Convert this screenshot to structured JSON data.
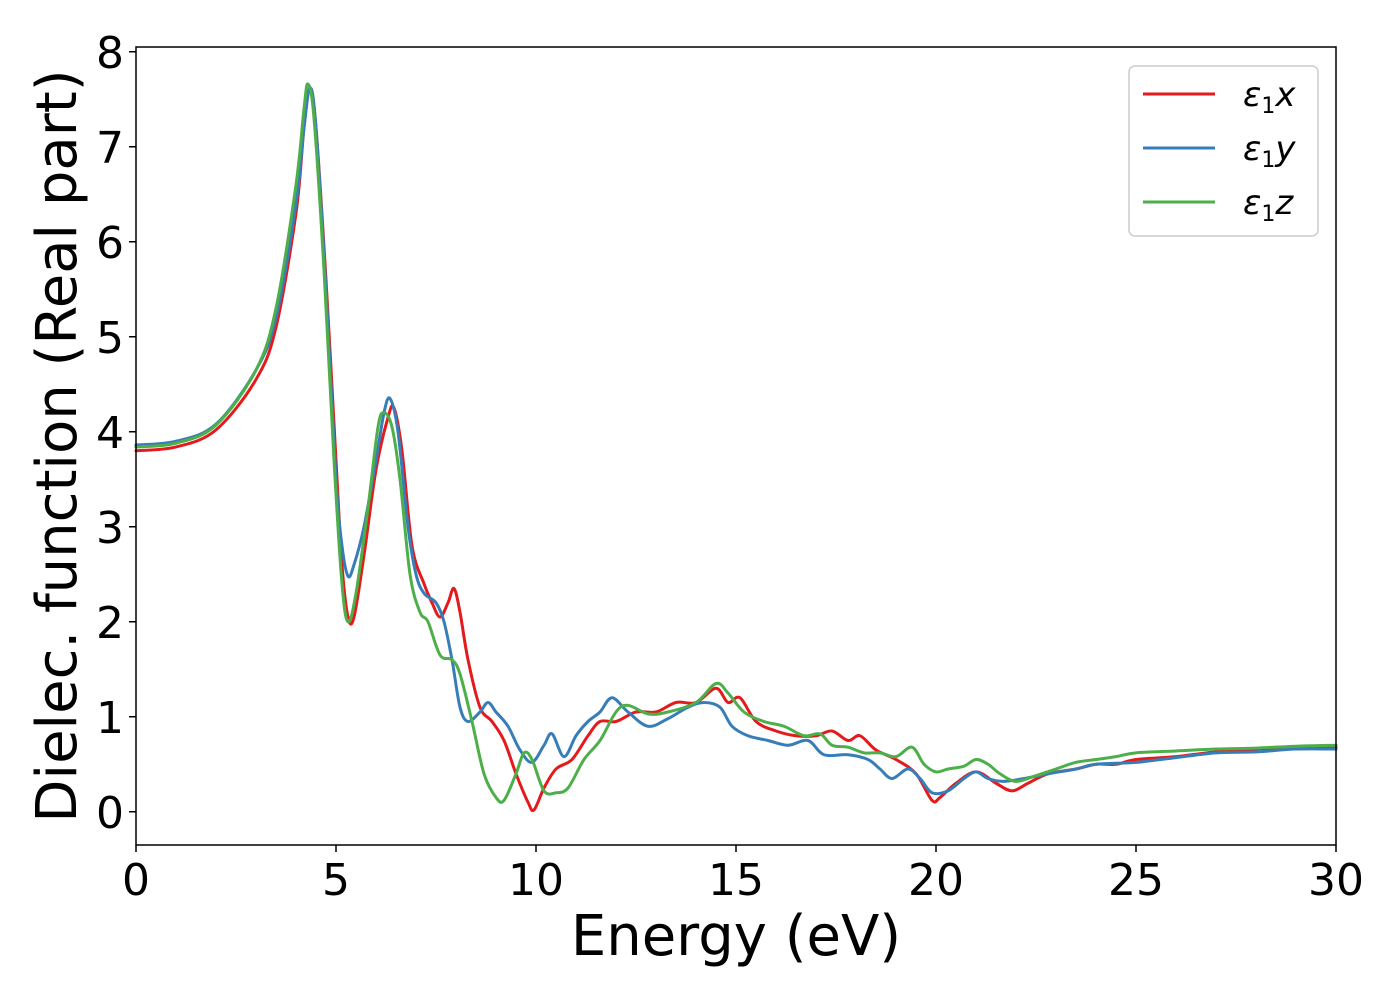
{
  "chart_data": {
    "type": "line",
    "xlabel": "Energy (eV)",
    "ylabel": "Dielec. function (Real part)",
    "xlim": [
      0,
      30
    ],
    "ylim": [
      -0.35,
      8.05
    ],
    "xticks": [
      0,
      5,
      10,
      15,
      20,
      25,
      30
    ],
    "yticks": [
      0,
      1,
      2,
      3,
      4,
      5,
      6,
      7,
      8
    ],
    "grid": false,
    "legend_position": "top-right",
    "series": [
      {
        "name": "ε1x",
        "legend": {
          "symbol": "ε",
          "sub": "1",
          "var": "x"
        },
        "color": "#e41a1c",
        "points": [
          [
            0,
            3.8
          ],
          [
            1,
            3.84
          ],
          [
            2,
            4.02
          ],
          [
            3,
            4.55
          ],
          [
            3.5,
            5.1
          ],
          [
            4,
            6.3
          ],
          [
            4.2,
            7.2
          ],
          [
            4.35,
            7.62
          ],
          [
            4.5,
            7.2
          ],
          [
            4.75,
            5.6
          ],
          [
            5.0,
            3.7
          ],
          [
            5.15,
            2.6
          ],
          [
            5.3,
            2.05
          ],
          [
            5.45,
            2.05
          ],
          [
            5.7,
            2.7
          ],
          [
            6.0,
            3.6
          ],
          [
            6.3,
            4.15
          ],
          [
            6.45,
            4.25
          ],
          [
            6.65,
            3.8
          ],
          [
            6.9,
            2.8
          ],
          [
            7.2,
            2.4
          ],
          [
            7.4,
            2.2
          ],
          [
            7.6,
            2.05
          ],
          [
            7.8,
            2.2
          ],
          [
            7.95,
            2.35
          ],
          [
            8.1,
            2.1
          ],
          [
            8.3,
            1.6
          ],
          [
            8.6,
            1.1
          ],
          [
            8.9,
            0.95
          ],
          [
            9.2,
            0.75
          ],
          [
            9.5,
            0.4
          ],
          [
            9.8,
            0.1
          ],
          [
            9.95,
            0.02
          ],
          [
            10.2,
            0.25
          ],
          [
            10.5,
            0.45
          ],
          [
            10.9,
            0.55
          ],
          [
            11.3,
            0.8
          ],
          [
            11.6,
            0.95
          ],
          [
            12.0,
            0.95
          ],
          [
            12.5,
            1.05
          ],
          [
            13.0,
            1.05
          ],
          [
            13.5,
            1.15
          ],
          [
            14.0,
            1.15
          ],
          [
            14.5,
            1.3
          ],
          [
            14.8,
            1.15
          ],
          [
            15.1,
            1.2
          ],
          [
            15.5,
            0.95
          ],
          [
            16.0,
            0.85
          ],
          [
            16.5,
            0.8
          ],
          [
            17.0,
            0.8
          ],
          [
            17.4,
            0.85
          ],
          [
            17.8,
            0.75
          ],
          [
            18.1,
            0.8
          ],
          [
            18.5,
            0.65
          ],
          [
            19.0,
            0.55
          ],
          [
            19.5,
            0.4
          ],
          [
            19.9,
            0.12
          ],
          [
            20.1,
            0.15
          ],
          [
            20.5,
            0.3
          ],
          [
            21.0,
            0.42
          ],
          [
            21.5,
            0.3
          ],
          [
            21.9,
            0.22
          ],
          [
            22.3,
            0.3
          ],
          [
            22.8,
            0.4
          ],
          [
            23.5,
            0.45
          ],
          [
            24.0,
            0.5
          ],
          [
            24.5,
            0.5
          ],
          [
            25.0,
            0.55
          ],
          [
            26.0,
            0.58
          ],
          [
            27.0,
            0.63
          ],
          [
            28.0,
            0.66
          ],
          [
            29.0,
            0.68
          ],
          [
            30.0,
            0.68
          ]
        ]
      },
      {
        "name": "ε1y",
        "legend": {
          "symbol": "ε",
          "sub": "1",
          "var": "y"
        },
        "color": "#377eb8",
        "points": [
          [
            0,
            3.86
          ],
          [
            1,
            3.9
          ],
          [
            2,
            4.08
          ],
          [
            3,
            4.65
          ],
          [
            3.5,
            5.2
          ],
          [
            4,
            6.4
          ],
          [
            4.2,
            7.2
          ],
          [
            4.35,
            7.62
          ],
          [
            4.5,
            7.2
          ],
          [
            4.75,
            5.5
          ],
          [
            5.0,
            3.5
          ],
          [
            5.15,
            2.8
          ],
          [
            5.3,
            2.48
          ],
          [
            5.45,
            2.6
          ],
          [
            5.7,
            3.0
          ],
          [
            6.0,
            3.7
          ],
          [
            6.2,
            4.2
          ],
          [
            6.35,
            4.35
          ],
          [
            6.55,
            4.0
          ],
          [
            6.8,
            3.0
          ],
          [
            7.0,
            2.5
          ],
          [
            7.2,
            2.3
          ],
          [
            7.5,
            2.2
          ],
          [
            7.7,
            2.0
          ],
          [
            7.9,
            1.6
          ],
          [
            8.1,
            1.1
          ],
          [
            8.3,
            0.95
          ],
          [
            8.6,
            1.05
          ],
          [
            8.8,
            1.15
          ],
          [
            9.0,
            1.05
          ],
          [
            9.3,
            0.9
          ],
          [
            9.6,
            0.65
          ],
          [
            9.9,
            0.52
          ],
          [
            10.2,
            0.7
          ],
          [
            10.4,
            0.82
          ],
          [
            10.7,
            0.58
          ],
          [
            11.0,
            0.8
          ],
          [
            11.3,
            0.95
          ],
          [
            11.6,
            1.05
          ],
          [
            11.9,
            1.2
          ],
          [
            12.3,
            1.05
          ],
          [
            12.8,
            0.9
          ],
          [
            13.3,
            0.98
          ],
          [
            13.8,
            1.1
          ],
          [
            14.2,
            1.15
          ],
          [
            14.6,
            1.1
          ],
          [
            14.9,
            0.9
          ],
          [
            15.3,
            0.8
          ],
          [
            15.8,
            0.75
          ],
          [
            16.3,
            0.7
          ],
          [
            16.8,
            0.75
          ],
          [
            17.2,
            0.6
          ],
          [
            17.8,
            0.6
          ],
          [
            18.3,
            0.55
          ],
          [
            18.6,
            0.45
          ],
          [
            18.9,
            0.35
          ],
          [
            19.3,
            0.45
          ],
          [
            19.6,
            0.35
          ],
          [
            19.9,
            0.2
          ],
          [
            20.3,
            0.22
          ],
          [
            20.7,
            0.35
          ],
          [
            21.0,
            0.42
          ],
          [
            21.3,
            0.35
          ],
          [
            21.7,
            0.32
          ],
          [
            22.2,
            0.35
          ],
          [
            22.8,
            0.4
          ],
          [
            23.5,
            0.45
          ],
          [
            24.0,
            0.5
          ],
          [
            25.0,
            0.52
          ],
          [
            26.0,
            0.57
          ],
          [
            27.0,
            0.62
          ],
          [
            28.0,
            0.63
          ],
          [
            29.0,
            0.66
          ],
          [
            30.0,
            0.66
          ]
        ]
      },
      {
        "name": "ε1z",
        "legend": {
          "symbol": "ε",
          "sub": "1",
          "var": "z"
        },
        "color": "#4daf4a",
        "points": [
          [
            0,
            3.84
          ],
          [
            1,
            3.88
          ],
          [
            2,
            4.07
          ],
          [
            3,
            4.65
          ],
          [
            3.5,
            5.3
          ],
          [
            4,
            6.6
          ],
          [
            4.2,
            7.4
          ],
          [
            4.3,
            7.66
          ],
          [
            4.45,
            7.3
          ],
          [
            4.7,
            5.7
          ],
          [
            4.95,
            3.7
          ],
          [
            5.15,
            2.4
          ],
          [
            5.3,
            2.0
          ],
          [
            5.5,
            2.3
          ],
          [
            5.8,
            3.2
          ],
          [
            6.05,
            4.05
          ],
          [
            6.2,
            4.2
          ],
          [
            6.4,
            4.05
          ],
          [
            6.6,
            3.5
          ],
          [
            6.85,
            2.5
          ],
          [
            7.1,
            2.1
          ],
          [
            7.3,
            2.0
          ],
          [
            7.6,
            1.65
          ],
          [
            7.9,
            1.6
          ],
          [
            8.1,
            1.45
          ],
          [
            8.4,
            0.95
          ],
          [
            8.7,
            0.4
          ],
          [
            9.0,
            0.15
          ],
          [
            9.2,
            0.12
          ],
          [
            9.5,
            0.4
          ],
          [
            9.7,
            0.62
          ],
          [
            9.9,
            0.55
          ],
          [
            10.2,
            0.22
          ],
          [
            10.5,
            0.2
          ],
          [
            10.8,
            0.25
          ],
          [
            11.2,
            0.55
          ],
          [
            11.6,
            0.75
          ],
          [
            12.0,
            1.05
          ],
          [
            12.3,
            1.12
          ],
          [
            12.8,
            1.03
          ],
          [
            13.3,
            1.05
          ],
          [
            14.0,
            1.15
          ],
          [
            14.5,
            1.35
          ],
          [
            14.8,
            1.25
          ],
          [
            15.2,
            1.05
          ],
          [
            15.7,
            0.95
          ],
          [
            16.2,
            0.9
          ],
          [
            16.7,
            0.8
          ],
          [
            17.1,
            0.82
          ],
          [
            17.4,
            0.7
          ],
          [
            17.8,
            0.68
          ],
          [
            18.2,
            0.62
          ],
          [
            18.6,
            0.62
          ],
          [
            19.0,
            0.58
          ],
          [
            19.4,
            0.68
          ],
          [
            19.7,
            0.5
          ],
          [
            20.0,
            0.42
          ],
          [
            20.3,
            0.45
          ],
          [
            20.7,
            0.48
          ],
          [
            21.0,
            0.55
          ],
          [
            21.3,
            0.5
          ],
          [
            21.6,
            0.4
          ],
          [
            22.0,
            0.32
          ],
          [
            22.5,
            0.38
          ],
          [
            23.0,
            0.45
          ],
          [
            23.5,
            0.52
          ],
          [
            24.0,
            0.55
          ],
          [
            24.5,
            0.58
          ],
          [
            25.0,
            0.62
          ],
          [
            26.0,
            0.64
          ],
          [
            27.0,
            0.66
          ],
          [
            28.0,
            0.67
          ],
          [
            29.0,
            0.69
          ],
          [
            30.0,
            0.7
          ]
        ]
      }
    ]
  }
}
